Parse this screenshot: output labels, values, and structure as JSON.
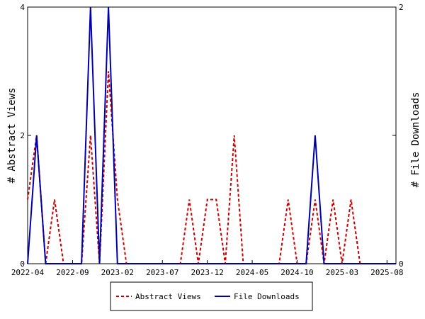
{
  "chart_data": {
    "type": "line",
    "x_tick_labels": [
      "2022-04",
      "2022-09",
      "2023-02",
      "2023-07",
      "2023-12",
      "2024-05",
      "2024-10",
      "2025-03",
      "2025-08"
    ],
    "x_tick_months": [
      0,
      5,
      10,
      15,
      20,
      25,
      30,
      35,
      40
    ],
    "x_range_months": [
      0,
      41
    ],
    "months": [
      0,
      1,
      2,
      3,
      4,
      5,
      6,
      7,
      8,
      9,
      10,
      11,
      12,
      13,
      14,
      15,
      16,
      17,
      18,
      19,
      20,
      21,
      22,
      23,
      24,
      25,
      26,
      27,
      28,
      29,
      30,
      31,
      32,
      33,
      34,
      35,
      36,
      37,
      38,
      39,
      40,
      41
    ],
    "ylabel_left": "# Abstract Views",
    "ylabel_right": "# File Downloads",
    "ylim_left": [
      0,
      4
    ],
    "ylim_right": [
      0,
      2
    ],
    "yticks_left": [
      "0",
      "2",
      "4"
    ],
    "yticks_right": [
      "0",
      "1",
      "2"
    ],
    "series": [
      {
        "name": "Abstract Views",
        "axis": "left",
        "color": "#cc0000",
        "dash": "dashed",
        "values": [
          1,
          2,
          0,
          1,
          0,
          0,
          0,
          2,
          0,
          3,
          1,
          0,
          0,
          0,
          0,
          0,
          0,
          0,
          1,
          0,
          1,
          1,
          0,
          2,
          0,
          0,
          0,
          0,
          0,
          1,
          0,
          0,
          1,
          0,
          1,
          0,
          1,
          0,
          0,
          0,
          0,
          0
        ]
      },
      {
        "name": "File Downloads",
        "axis": "right",
        "color": "#0000aa",
        "dash": "solid",
        "values": [
          0,
          1,
          0,
          0,
          0,
          0,
          0,
          2,
          0,
          2,
          0,
          0,
          0,
          0,
          0,
          0,
          0,
          0,
          0,
          0,
          0,
          0,
          0,
          0,
          0,
          0,
          0,
          0,
          0,
          0,
          0,
          0,
          1,
          0,
          0,
          0,
          0,
          0,
          0,
          0,
          0,
          0
        ]
      }
    ],
    "legend_placement": "bottom",
    "grid": false
  }
}
